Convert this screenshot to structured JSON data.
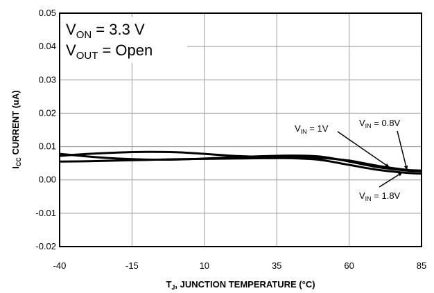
{
  "chart_data": {
    "type": "line",
    "title": "",
    "xlabel": {
      "main": "T",
      "sub": "J",
      "rest": ", JUNCTION TEMPERATURE (°C)"
    },
    "ylabel": {
      "main": "I",
      "sub": "CC",
      "rest": " CURRENT (uA)"
    },
    "xlim": [
      -40,
      85
    ],
    "ylim": [
      -0.02,
      0.05
    ],
    "x_ticks": [
      "-40",
      "-15",
      "10",
      "35",
      "60",
      "85"
    ],
    "y_ticks": [
      "0.05",
      "0.04",
      "0.03",
      "0.02",
      "0.01",
      "0.00",
      "-0.01",
      "-0.02"
    ],
    "grid": true,
    "conditions": [
      {
        "main": "V",
        "sub": "ON",
        "rest": " = 3.3 V"
      },
      {
        "main": "V",
        "sub": "OUT",
        "rest": " = Open"
      }
    ],
    "series": [
      {
        "name": "V_IN = 1V",
        "x": [
          -40,
          -30,
          -20,
          -10,
          0,
          10,
          20,
          30,
          40,
          50,
          60,
          70,
          80,
          85
        ],
        "y": [
          0.0072,
          0.0078,
          0.0082,
          0.0084,
          0.0083,
          0.0078,
          0.0072,
          0.0069,
          0.0068,
          0.0066,
          0.0058,
          0.0042,
          0.003,
          0.0028
        ]
      },
      {
        "name": "V_IN = 0.8V",
        "x": [
          -40,
          -30,
          -20,
          -10,
          0,
          10,
          20,
          30,
          40,
          50,
          60,
          70,
          80,
          85
        ],
        "y": [
          0.0078,
          0.007,
          0.0064,
          0.0061,
          0.0061,
          0.0064,
          0.0068,
          0.0071,
          0.0073,
          0.007,
          0.0055,
          0.0038,
          0.0028,
          0.0026
        ]
      },
      {
        "name": "V_IN = 1.8V",
        "x": [
          -40,
          -30,
          -20,
          -10,
          0,
          10,
          20,
          30,
          40,
          50,
          60,
          70,
          80,
          85
        ],
        "y": [
          0.0055,
          0.0056,
          0.0058,
          0.006,
          0.0062,
          0.0063,
          0.0064,
          0.0065,
          0.0065,
          0.006,
          0.0045,
          0.003,
          0.0021,
          0.0019
        ]
      }
    ],
    "annotations": [
      {
        "series": 0,
        "main": "V",
        "sub": "IN",
        "rest": " = 1V"
      },
      {
        "series": 1,
        "main": "V",
        "sub": "IN",
        "rest": " = 0.8V"
      },
      {
        "series": 2,
        "main": "V",
        "sub": "IN",
        "rest": " = 1.8V"
      }
    ],
    "colors": {
      "line": "#000000",
      "grid": "#999999",
      "frame": "#000000"
    }
  }
}
